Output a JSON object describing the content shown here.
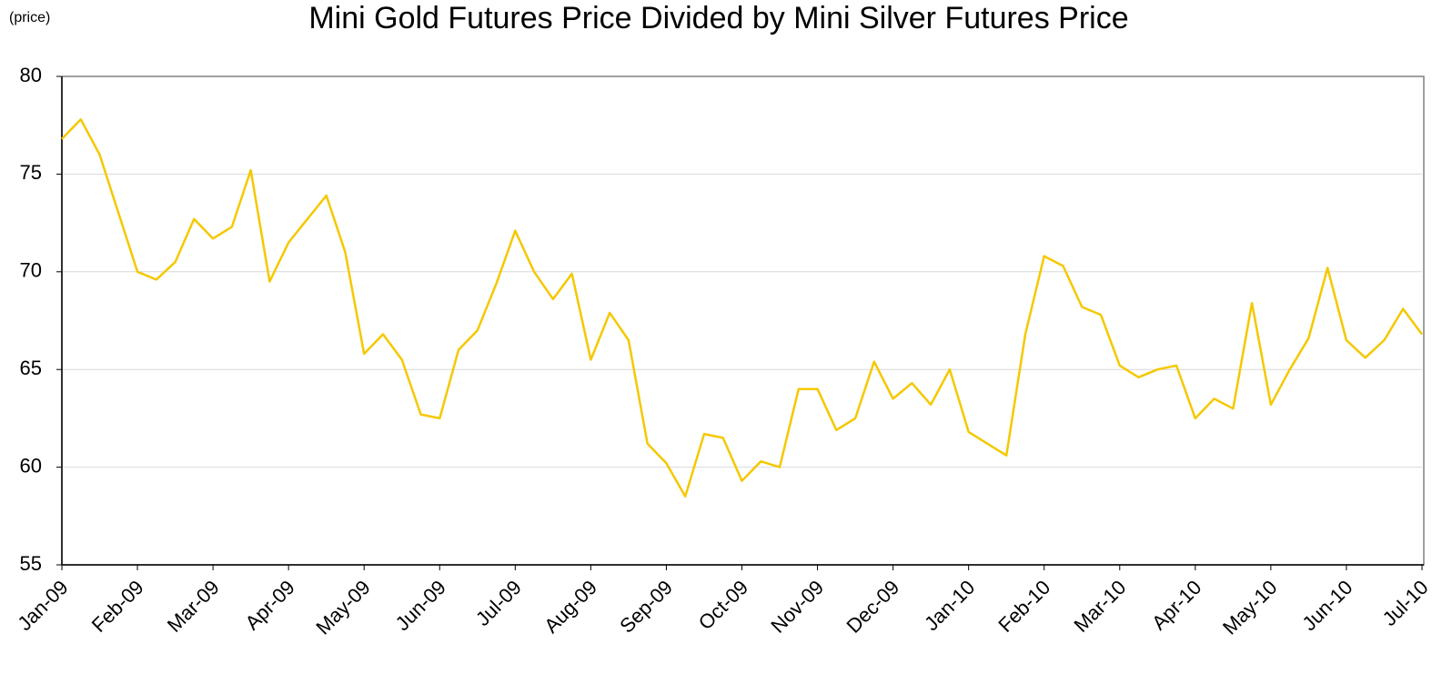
{
  "chart_data": {
    "type": "line",
    "title": "Mini Gold Futures Price Divided by Mini Silver Futures Price",
    "ylabel": "(price)",
    "series": [
      {
        "color": "#f5c800",
        "values": [
          76.8,
          77.8,
          76.0,
          73.0,
          70.0,
          69.6,
          70.5,
          72.7,
          71.7,
          72.3,
          75.2,
          69.5,
          71.5,
          72.7,
          73.9,
          71.0,
          65.8,
          66.8,
          65.5,
          62.7,
          62.5,
          66.0,
          67.0,
          69.4,
          72.1,
          70.0,
          68.6,
          69.9,
          65.5,
          67.9,
          66.5,
          61.2,
          60.2,
          58.5,
          61.7,
          61.5,
          59.3,
          60.3,
          60.0,
          64.0,
          64.0,
          61.9,
          62.5,
          65.4,
          63.5,
          64.3,
          63.2,
          65.0,
          61.8,
          61.2,
          60.6,
          66.8,
          70.8,
          70.3,
          68.2,
          67.8,
          65.2,
          64.6,
          65.0,
          65.2,
          62.5,
          63.5,
          63.0,
          68.4,
          63.2,
          65.0,
          66.6,
          70.2,
          66.5,
          65.6,
          66.5,
          68.1,
          66.8
        ]
      }
    ],
    "xlim": [
      0,
      72
    ],
    "xticks": [
      {
        "value": 0,
        "label": "Jan-09"
      },
      {
        "value": 4,
        "label": "Feb-09"
      },
      {
        "value": 8,
        "label": "Mar-09"
      },
      {
        "value": 12,
        "label": "Apr-09"
      },
      {
        "value": 16,
        "label": "May-09"
      },
      {
        "value": 20,
        "label": "Jun-09"
      },
      {
        "value": 24,
        "label": "Jul-09"
      },
      {
        "value": 28,
        "label": "Aug-09"
      },
      {
        "value": 32,
        "label": "Sep-09"
      },
      {
        "value": 36,
        "label": "Oct-09"
      },
      {
        "value": 40,
        "label": "Nov-09"
      },
      {
        "value": 44,
        "label": "Dec-09"
      },
      {
        "value": 48,
        "label": "Jan-10"
      },
      {
        "value": 52,
        "label": "Feb-10"
      },
      {
        "value": 56,
        "label": "Mar-10"
      },
      {
        "value": 60,
        "label": "Apr-10"
      },
      {
        "value": 64,
        "label": "May-10"
      },
      {
        "value": 68,
        "label": "Jun-10"
      },
      {
        "value": 72,
        "label": "Jul-10"
      }
    ],
    "ylim": [
      55,
      80
    ],
    "yticks": [
      55,
      60,
      65,
      70,
      75,
      80
    ],
    "grid": true
  }
}
